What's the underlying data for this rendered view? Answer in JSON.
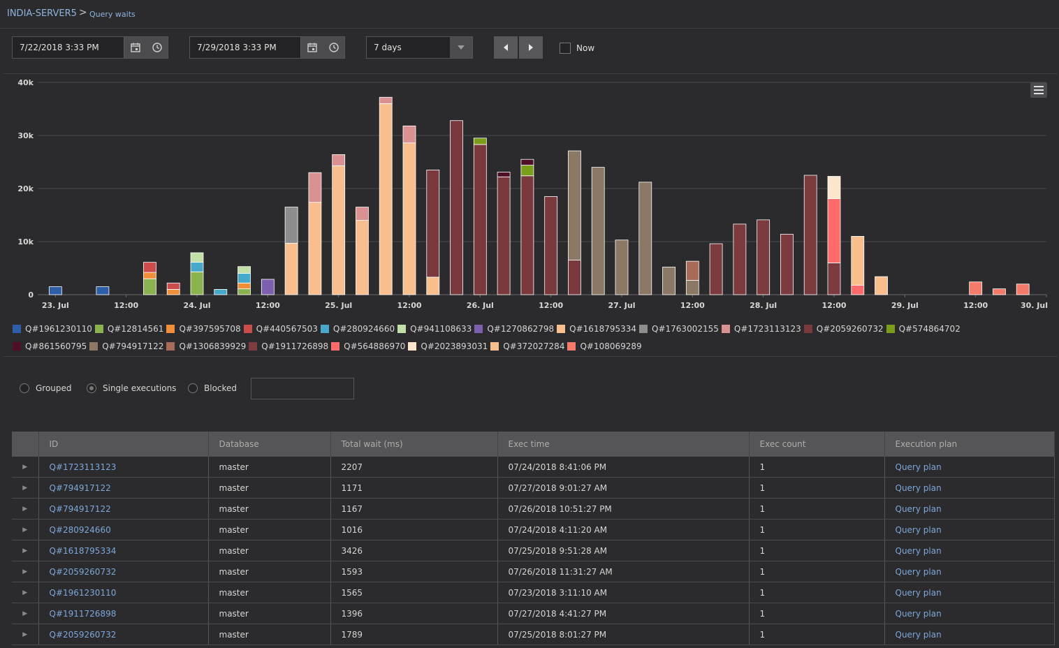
{
  "breadcrumb": {
    "server": "INDIA-SERVER5",
    "separator": ">",
    "page": "Query waits"
  },
  "toolbar": {
    "start_datetime": "7/22/2018 3:33 PM",
    "end_datetime": "7/29/2018 3:33 PM",
    "range": "7 days",
    "now_label": "Now",
    "now_checked": false
  },
  "chart_data": {
    "type": "bar",
    "stacked": true,
    "ylim": [
      0,
      40000
    ],
    "yticks": [
      {
        "value": 0,
        "label": "0"
      },
      {
        "value": 10000,
        "label": "10k"
      },
      {
        "value": 20000,
        "label": "20k"
      },
      {
        "value": 30000,
        "label": "30k"
      },
      {
        "value": 40000,
        "label": "40k"
      }
    ],
    "x_start": "2018-07-22T21:00",
    "x_end": "2018-07-30T00:00",
    "bucket_hours": 4,
    "xticks": [
      {
        "time": "2018-07-23T00:00",
        "label": "23. Jul"
      },
      {
        "time": "2018-07-23T12:00",
        "label": "12:00"
      },
      {
        "time": "2018-07-24T00:00",
        "label": "24. Jul"
      },
      {
        "time": "2018-07-24T12:00",
        "label": "12:00"
      },
      {
        "time": "2018-07-25T00:00",
        "label": "25. Jul"
      },
      {
        "time": "2018-07-25T12:00",
        "label": "12:00"
      },
      {
        "time": "2018-07-26T00:00",
        "label": "26. Jul"
      },
      {
        "time": "2018-07-26T12:00",
        "label": "12:00"
      },
      {
        "time": "2018-07-27T00:00",
        "label": "27. Jul"
      },
      {
        "time": "2018-07-27T12:00",
        "label": "12:00"
      },
      {
        "time": "2018-07-28T00:00",
        "label": "28. Jul"
      },
      {
        "time": "2018-07-28T12:00",
        "label": "12:00"
      },
      {
        "time": "2018-07-29T00:00",
        "label": "29. Jul"
      },
      {
        "time": "2018-07-29T12:00",
        "label": "12:00"
      },
      {
        "time": "2018-07-30T00:00",
        "label": "30. Jul"
      }
    ],
    "legend_placement": "bottom",
    "grid": true,
    "series": [
      {
        "name": "Q#1961230110",
        "color": "#2f5ea8"
      },
      {
        "name": "Q#12814561",
        "color": "#8ab34f"
      },
      {
        "name": "Q#397595708",
        "color": "#ef8f3a"
      },
      {
        "name": "Q#440567503",
        "color": "#cc4b4b"
      },
      {
        "name": "Q#280924660",
        "color": "#46a9c9"
      },
      {
        "name": "Q#941108633",
        "color": "#c3dfa8"
      },
      {
        "name": "Q#1270862798",
        "color": "#7c5fad"
      },
      {
        "name": "Q#1618795334",
        "color": "#f9be8e"
      },
      {
        "name": "Q#1763002155",
        "color": "#8d8d8d"
      },
      {
        "name": "Q#1723113123",
        "color": "#d99191"
      },
      {
        "name": "Q#2059260732",
        "color": "#7a3a3d"
      },
      {
        "name": "Q#574864702",
        "color": "#7a9e1a"
      },
      {
        "name": "Q#861560795",
        "color": "#4e1026"
      },
      {
        "name": "Q#794917122",
        "color": "#8b7966"
      },
      {
        "name": "Q#1306839929",
        "color": "#a86b5a"
      },
      {
        "name": "Q#1911726898",
        "color": "#7c3b3f"
      },
      {
        "name": "Q#564886970",
        "color": "#ff6b6b"
      },
      {
        "name": "Q#2023893031",
        "color": "#fbe5cc"
      },
      {
        "name": "Q#372027284",
        "color": "#f9be8e"
      },
      {
        "name": "Q#108069289",
        "color": "#f47a6a"
      }
    ],
    "bars": [
      {
        "time": "2018-07-23T00:00",
        "segments": [
          {
            "series": "Q#1961230110",
            "value": 1500
          }
        ]
      },
      {
        "time": "2018-07-23T08:00",
        "segments": [
          {
            "series": "Q#1961230110",
            "value": 1500
          }
        ]
      },
      {
        "time": "2018-07-23T16:00",
        "segments": [
          {
            "series": "Q#12814561",
            "value": 3000
          },
          {
            "series": "Q#397595708",
            "value": 1200
          },
          {
            "series": "Q#440567503",
            "value": 1900
          }
        ]
      },
      {
        "time": "2018-07-23T20:00",
        "segments": [
          {
            "series": "Q#397595708",
            "value": 1000
          },
          {
            "series": "Q#440567503",
            "value": 1200
          }
        ]
      },
      {
        "time": "2018-07-24T00:00",
        "segments": [
          {
            "series": "Q#12814561",
            "value": 4300
          },
          {
            "series": "Q#280924660",
            "value": 1800
          },
          {
            "series": "Q#941108633",
            "value": 1800
          }
        ]
      },
      {
        "time": "2018-07-24T04:00",
        "segments": [
          {
            "series": "Q#280924660",
            "value": 1000
          }
        ]
      },
      {
        "time": "2018-07-24T08:00",
        "segments": [
          {
            "series": "Q#12814561",
            "value": 1100
          },
          {
            "series": "Q#397595708",
            "value": 1100
          },
          {
            "series": "Q#280924660",
            "value": 1800
          },
          {
            "series": "Q#941108633",
            "value": 1300
          }
        ]
      },
      {
        "time": "2018-07-24T12:00",
        "segments": [
          {
            "series": "Q#1270862798",
            "value": 2900
          }
        ]
      },
      {
        "time": "2018-07-24T16:00",
        "segments": [
          {
            "series": "Q#1618795334",
            "value": 9700
          },
          {
            "series": "Q#1763002155",
            "value": 6800
          }
        ]
      },
      {
        "time": "2018-07-24T20:00",
        "segments": [
          {
            "series": "Q#1618795334",
            "value": 17400
          },
          {
            "series": "Q#1723113123",
            "value": 5600
          }
        ]
      },
      {
        "time": "2018-07-25T00:00",
        "segments": [
          {
            "series": "Q#1618795334",
            "value": 24300
          },
          {
            "series": "Q#1723113123",
            "value": 2100
          }
        ]
      },
      {
        "time": "2018-07-25T04:00",
        "segments": [
          {
            "series": "Q#1618795334",
            "value": 14000
          },
          {
            "series": "Q#1723113123",
            "value": 2500
          }
        ]
      },
      {
        "time": "2018-07-25T08:00",
        "segments": [
          {
            "series": "Q#1618795334",
            "value": 36000
          },
          {
            "series": "Q#1723113123",
            "value": 1200
          }
        ]
      },
      {
        "time": "2018-07-25T12:00",
        "segments": [
          {
            "series": "Q#1618795334",
            "value": 28600
          },
          {
            "series": "Q#1723113123",
            "value": 3200
          }
        ]
      },
      {
        "time": "2018-07-25T16:00",
        "segments": [
          {
            "series": "Q#1618795334",
            "value": 3300
          },
          {
            "series": "Q#2059260732",
            "value": 20200
          }
        ]
      },
      {
        "time": "2018-07-25T20:00",
        "segments": [
          {
            "series": "Q#2059260732",
            "value": 32800
          }
        ]
      },
      {
        "time": "2018-07-26T00:00",
        "segments": [
          {
            "series": "Q#2059260732",
            "value": 28300
          },
          {
            "series": "Q#574864702",
            "value": 1200
          }
        ]
      },
      {
        "time": "2018-07-26T04:00",
        "segments": [
          {
            "series": "Q#2059260732",
            "value": 22200
          },
          {
            "series": "Q#861560795",
            "value": 900
          }
        ]
      },
      {
        "time": "2018-07-26T08:00",
        "segments": [
          {
            "series": "Q#2059260732",
            "value": 22400
          },
          {
            "series": "Q#574864702",
            "value": 2000
          },
          {
            "series": "Q#861560795",
            "value": 1100
          }
        ]
      },
      {
        "time": "2018-07-26T12:00",
        "segments": [
          {
            "series": "Q#2059260732",
            "value": 18500
          }
        ]
      },
      {
        "time": "2018-07-26T16:00",
        "segments": [
          {
            "series": "Q#2059260732",
            "value": 6500
          },
          {
            "series": "Q#794917122",
            "value": 20600
          }
        ]
      },
      {
        "time": "2018-07-26T20:00",
        "segments": [
          {
            "series": "Q#794917122",
            "value": 24000
          }
        ]
      },
      {
        "time": "2018-07-27T00:00",
        "segments": [
          {
            "series": "Q#794917122",
            "value": 10300
          }
        ]
      },
      {
        "time": "2018-07-27T04:00",
        "segments": [
          {
            "series": "Q#794917122",
            "value": 21200
          }
        ]
      },
      {
        "time": "2018-07-27T08:00",
        "segments": [
          {
            "series": "Q#794917122",
            "value": 5200
          }
        ]
      },
      {
        "time": "2018-07-27T12:00",
        "segments": [
          {
            "series": "Q#794917122",
            "value": 2700
          },
          {
            "series": "Q#1306839929",
            "value": 3600
          }
        ]
      },
      {
        "time": "2018-07-27T16:00",
        "segments": [
          {
            "series": "Q#1911726898",
            "value": 9600
          }
        ]
      },
      {
        "time": "2018-07-27T20:00",
        "segments": [
          {
            "series": "Q#1911726898",
            "value": 13300
          }
        ]
      },
      {
        "time": "2018-07-28T00:00",
        "segments": [
          {
            "series": "Q#1911726898",
            "value": 14100
          }
        ]
      },
      {
        "time": "2018-07-28T04:00",
        "segments": [
          {
            "series": "Q#1911726898",
            "value": 11400
          }
        ]
      },
      {
        "time": "2018-07-28T08:00",
        "segments": [
          {
            "series": "Q#1911726898",
            "value": 22500
          }
        ]
      },
      {
        "time": "2018-07-28T12:00",
        "segments": [
          {
            "series": "Q#1911726898",
            "value": 6000
          },
          {
            "series": "Q#564886970",
            "value": 12100
          },
          {
            "series": "Q#2023893031",
            "value": 4200
          }
        ]
      },
      {
        "time": "2018-07-28T16:00",
        "segments": [
          {
            "series": "Q#564886970",
            "value": 1800
          },
          {
            "series": "Q#372027284",
            "value": 9200
          }
        ]
      },
      {
        "time": "2018-07-28T20:00",
        "segments": [
          {
            "series": "Q#372027284",
            "value": 3400
          }
        ]
      },
      {
        "time": "2018-07-29T12:00",
        "segments": [
          {
            "series": "Q#108069289",
            "value": 2400
          }
        ]
      },
      {
        "time": "2018-07-29T16:00",
        "segments": [
          {
            "series": "Q#108069289",
            "value": 1100
          }
        ]
      },
      {
        "time": "2018-07-29T20:00",
        "segments": [
          {
            "series": "Q#108069289",
            "value": 2000
          }
        ]
      }
    ]
  },
  "filters": {
    "options": [
      {
        "label": "Grouped",
        "checked": false
      },
      {
        "label": "Single executions",
        "checked": true
      },
      {
        "label": "Blocked",
        "checked": false
      }
    ],
    "search_value": ""
  },
  "table": {
    "columns": [
      "ID",
      "Database",
      "Total wait (ms)",
      "Exec time",
      "Exec count",
      "Execution plan"
    ],
    "rows": [
      [
        "Q#1723113123",
        "master",
        "2207",
        "07/24/2018 8:41:06 PM",
        "1",
        "Query plan"
      ],
      [
        "Q#794917122",
        "master",
        "1171",
        "07/27/2018 9:01:27 AM",
        "1",
        "Query plan"
      ],
      [
        "Q#794917122",
        "master",
        "1167",
        "07/26/2018 10:51:27 PM",
        "1",
        "Query plan"
      ],
      [
        "Q#280924660",
        "master",
        "1016",
        "07/24/2018 4:11:20 AM",
        "1",
        "Query plan"
      ],
      [
        "Q#1618795334",
        "master",
        "3426",
        "07/25/2018 9:51:28 AM",
        "1",
        "Query plan"
      ],
      [
        "Q#2059260732",
        "master",
        "1593",
        "07/26/2018 11:31:27 AM",
        "1",
        "Query plan"
      ],
      [
        "Q#1961230110",
        "master",
        "1565",
        "07/23/2018 3:11:10 AM",
        "1",
        "Query plan"
      ],
      [
        "Q#1911726898",
        "master",
        "1396",
        "07/27/2018 4:41:27 PM",
        "1",
        "Query plan"
      ],
      [
        "Q#2059260732",
        "master",
        "1789",
        "07/25/2018 8:01:27 PM",
        "1",
        "Query plan"
      ]
    ]
  }
}
